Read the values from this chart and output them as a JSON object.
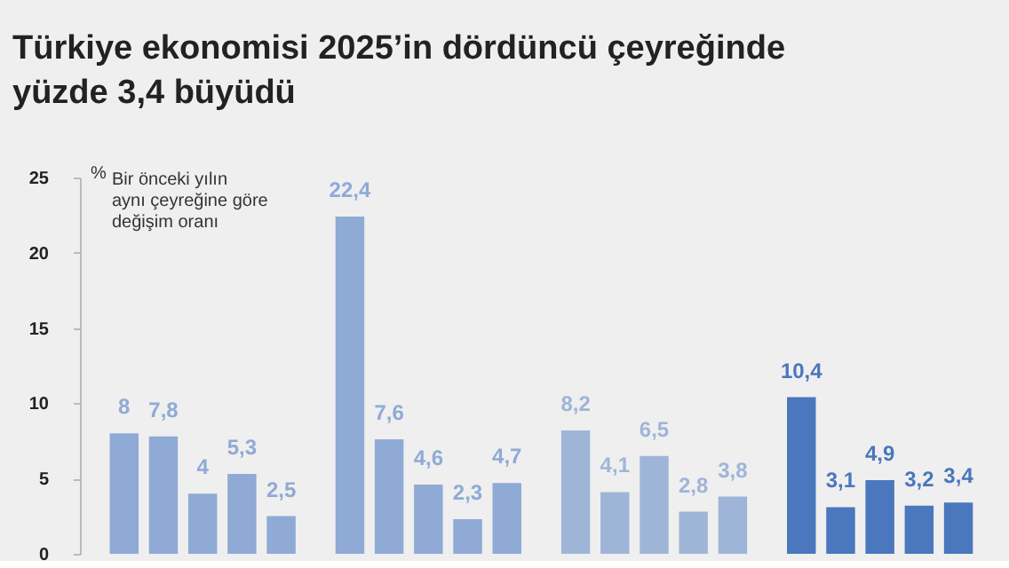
{
  "chart_data": {
    "type": "bar",
    "title": "Türkiye ekonomisi 2025’in dördüncü çeyreğinde yüzde 3,4 büyüdü",
    "ylabel": "%",
    "annotations": [
      "Bir önceki yılın aynı çeyreğine göre değişim oranı"
    ],
    "categories": [
      null,
      null,
      null,
      null,
      null,
      null,
      null,
      null,
      null,
      null,
      null,
      null,
      null,
      null,
      null,
      null,
      null,
      null,
      null,
      null
    ],
    "values": [
      8,
      7.8,
      4,
      5.3,
      2.5,
      22.4,
      7.6,
      4.6,
      2.3,
      4.7,
      8.2,
      4.1,
      6.5,
      2.8,
      3.8,
      10.4,
      3.1,
      4.9,
      3.2,
      3.4
    ],
    "value_labels": [
      "8",
      "7,8",
      "4",
      "5,3",
      "2,5",
      "22,4",
      "7,6",
      "4,6",
      "2,3",
      "4,7",
      "8,2",
      "4,1",
      "6,5",
      "2,8",
      "3,8",
      "10,4",
      "3,1",
      "4,9",
      "3,2",
      "3,4"
    ],
    "colors": [
      "#8faad5",
      "#8faad5",
      "#8faad5",
      "#8faad5",
      "#8faad5",
      "#8faad5",
      "#8faad5",
      "#8faad5",
      "#8faad5",
      "#8faad5",
      "#9fb5d8",
      "#9fb5d8",
      "#9fb5d8",
      "#9fb5d8",
      "#9fb5d8",
      "#4a77bd",
      "#4a77bd",
      "#4a77bd",
      "#4a77bd",
      "#4a77bd"
    ],
    "ylim": [
      0,
      25
    ],
    "yticks": [
      0,
      5,
      10,
      15,
      20,
      25
    ],
    "grid": false
  }
}
